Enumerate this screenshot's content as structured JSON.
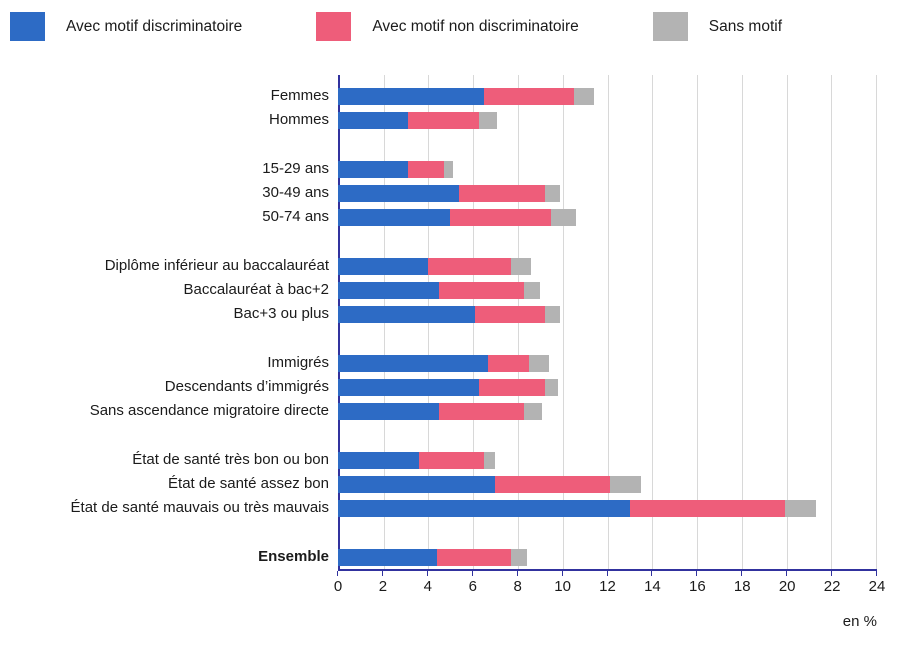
{
  "legend": {
    "items": [
      {
        "key": "avec-motif-discriminatoire",
        "label": "Avec motif discriminatoire",
        "color": "#2d6bc5"
      },
      {
        "key": "avec-motif-non-discriminatoire",
        "label": "Avec motif non discriminatoire",
        "color": "#ee5d7a"
      },
      {
        "key": "sans-motif",
        "label": "Sans motif",
        "color": "#b3b3b3"
      }
    ]
  },
  "axis": {
    "min": 0,
    "max": 24,
    "ticks": [
      0,
      2,
      4,
      6,
      8,
      10,
      12,
      14,
      16,
      18,
      20,
      22,
      24
    ],
    "unit_label": "en %"
  },
  "colors": {
    "axis_line": "#31329e",
    "gridline": "#d8d8d8",
    "text": "#1b1b1b"
  },
  "chart_data": {
    "type": "bar",
    "orientation": "horizontal",
    "stacked": true,
    "unit": "%",
    "xlim": [
      0,
      24
    ],
    "grid": true,
    "legend_position": "top",
    "series_names": [
      "Avec motif discriminatoire",
      "Avec motif non discriminatoire",
      "Sans motif"
    ],
    "groups": [
      {
        "name": "sexe",
        "rows": [
          {
            "label": "Femmes",
            "values": [
              6.5,
              4.0,
              0.9
            ]
          },
          {
            "label": "Hommes",
            "values": [
              3.1,
              3.2,
              0.8
            ]
          }
        ]
      },
      {
        "name": "age",
        "rows": [
          {
            "label": "15-29 ans",
            "values": [
              3.1,
              1.6,
              0.4
            ]
          },
          {
            "label": "30-49 ans",
            "values": [
              5.4,
              3.8,
              0.7
            ]
          },
          {
            "label": "50-74 ans",
            "values": [
              5.0,
              4.5,
              1.1
            ]
          }
        ]
      },
      {
        "name": "diplome",
        "rows": [
          {
            "label": "Diplôme inférieur au baccalauréat",
            "values": [
              4.0,
              3.7,
              0.9
            ]
          },
          {
            "label": "Baccalauréat à bac+2",
            "values": [
              4.5,
              3.8,
              0.7
            ]
          },
          {
            "label": "Bac+3 ou plus",
            "values": [
              6.1,
              3.1,
              0.7
            ]
          }
        ]
      },
      {
        "name": "origine",
        "rows": [
          {
            "label": "Immigrés",
            "values": [
              6.7,
              1.8,
              0.9
            ]
          },
          {
            "label": "Descendants d’immigrés",
            "values": [
              6.3,
              2.9,
              0.6
            ]
          },
          {
            "label": "Sans ascendance migratoire directe",
            "values": [
              4.5,
              3.8,
              0.8
            ]
          }
        ]
      },
      {
        "name": "sante",
        "rows": [
          {
            "label": "État de santé très bon ou bon",
            "values": [
              3.6,
              2.9,
              0.5
            ]
          },
          {
            "label": "État de santé assez bon",
            "values": [
              7.0,
              5.1,
              1.4
            ]
          },
          {
            "label": "État de santé mauvais ou très mauvais",
            "values": [
              13.0,
              6.9,
              1.4
            ]
          }
        ]
      },
      {
        "name": "ensemble",
        "rows": [
          {
            "label": "Ensemble",
            "values": [
              4.4,
              3.3,
              0.7
            ],
            "bold": true
          }
        ]
      }
    ]
  }
}
